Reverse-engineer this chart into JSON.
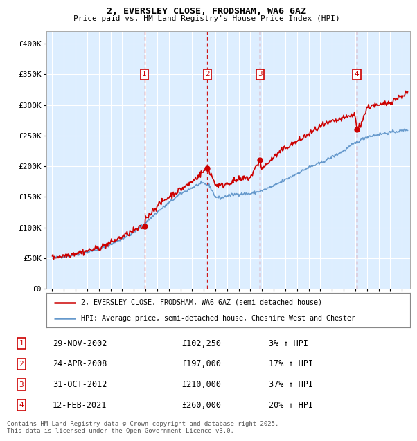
{
  "title_line1": "2, EVERSLEY CLOSE, FRODSHAM, WA6 6AZ",
  "title_line2": "Price paid vs. HM Land Registry's House Price Index (HPI)",
  "legend_label1": "2, EVERSLEY CLOSE, FRODSHAM, WA6 6AZ (semi-detached house)",
  "legend_label2": "HPI: Average price, semi-detached house, Cheshire West and Chester",
  "footer": "Contains HM Land Registry data © Crown copyright and database right 2025.\nThis data is licensed under the Open Government Licence v3.0.",
  "sale_markers": [
    {
      "num": 1,
      "date": "29-NOV-2002",
      "price": 102250,
      "pct": "3%",
      "x": 2002.91
    },
    {
      "num": 2,
      "date": "24-APR-2008",
      "price": 197000,
      "pct": "17%",
      "x": 2008.31
    },
    {
      "num": 3,
      "date": "31-OCT-2012",
      "price": 210000,
      "pct": "37%",
      "x": 2012.83
    },
    {
      "num": 4,
      "date": "12-FEB-2021",
      "price": 260000,
      "pct": "20%",
      "x": 2021.12
    }
  ],
  "hpi_color": "#6699cc",
  "price_color": "#cc0000",
  "marker_box_color": "#cc0000",
  "vline_color": "#cc0000",
  "background_color": "#ddeeff",
  "ylim": [
    0,
    420000
  ],
  "xlim": [
    1994.5,
    2025.7
  ],
  "yticks": [
    0,
    50000,
    100000,
    150000,
    200000,
    250000,
    300000,
    350000,
    400000
  ],
  "ytick_labels": [
    "£0",
    "£50K",
    "£100K",
    "£150K",
    "£200K",
    "£250K",
    "£300K",
    "£350K",
    "£400K"
  ],
  "xticks": [
    1995,
    1996,
    1997,
    1998,
    1999,
    2000,
    2001,
    2002,
    2003,
    2004,
    2005,
    2006,
    2007,
    2008,
    2009,
    2010,
    2011,
    2012,
    2013,
    2014,
    2015,
    2016,
    2017,
    2018,
    2019,
    2020,
    2021,
    2022,
    2023,
    2024,
    2025
  ],
  "marker_y": 350000
}
